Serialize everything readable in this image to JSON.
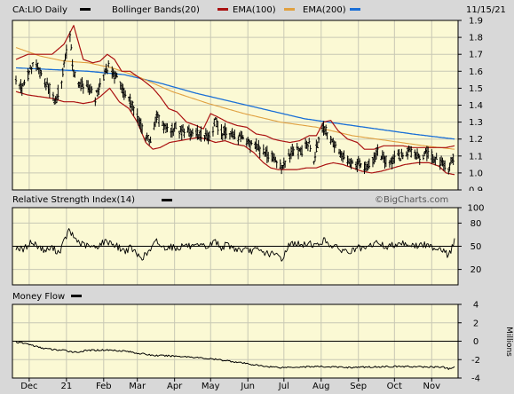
{
  "header": {
    "ticker_label": "CA:LIO Daily",
    "bollinger_label": "Bollinger Bands(20)",
    "ema100_label": "EMA(100)",
    "ema200_label": "EMA(200)",
    "date": "11/15/21"
  },
  "colors": {
    "price": "#000000",
    "bollinger": "#aa1111",
    "ema100": "#e0a040",
    "ema200": "#1a6fd6",
    "panel_bg": "#fbf9d4",
    "outer_bg": "#d8d8d8"
  },
  "rsi_panel": {
    "title": "Relative Strength Index(14)",
    "watermark": "©BigCharts.com"
  },
  "mf_panel": {
    "title": "Money Flow",
    "unit": "Millions"
  },
  "chart_data": [
    {
      "type": "ohlc",
      "ylim": [
        0.9,
        1.9
      ],
      "yticks": [
        0.9,
        1.0,
        1.1,
        1.2,
        1.3,
        1.4,
        1.5,
        1.6,
        1.7,
        1.8,
        1.9
      ],
      "x_tick_labels": [
        "Dec",
        "21",
        "Feb",
        "Mar",
        "Apr",
        "May",
        "Jun",
        "Jul",
        "Aug",
        "Sep",
        "Oct",
        "Nov"
      ],
      "x_ticks": [
        {
          "label": "Dec",
          "day": 11
        },
        {
          "label": "21",
          "day": 42
        },
        {
          "label": "Feb",
          "day": 73
        },
        {
          "label": "Mar",
          "day": 101
        },
        {
          "label": "Apr",
          "day": 132
        },
        {
          "label": "May",
          "day": 162
        },
        {
          "label": "Jun",
          "day": 193
        },
        {
          "label": "Jul",
          "day": 223
        },
        {
          "label": "Aug",
          "day": 254
        },
        {
          "label": "Sep",
          "day": 285
        },
        {
          "label": "Oct",
          "day": 315
        },
        {
          "label": "Nov",
          "day": 346
        }
      ],
      "x_domain": [
        0,
        365
      ],
      "price_anchors": [
        [
          0,
          1.56
        ],
        [
          5,
          1.5
        ],
        [
          10,
          1.58
        ],
        [
          16,
          1.66
        ],
        [
          22,
          1.55
        ],
        [
          28,
          1.5
        ],
        [
          33,
          1.42
        ],
        [
          38,
          1.55
        ],
        [
          42,
          1.72
        ],
        [
          45,
          1.8
        ],
        [
          48,
          1.58
        ],
        [
          54,
          1.52
        ],
        [
          60,
          1.5
        ],
        [
          66,
          1.44
        ],
        [
          72,
          1.56
        ],
        [
          77,
          1.63
        ],
        [
          82,
          1.58
        ],
        [
          88,
          1.5
        ],
        [
          94,
          1.44
        ],
        [
          100,
          1.36
        ],
        [
          104,
          1.27
        ],
        [
          108,
          1.22
        ],
        [
          112,
          1.18
        ],
        [
          117,
          1.34
        ],
        [
          122,
          1.28
        ],
        [
          127,
          1.25
        ],
        [
          132,
          1.27
        ],
        [
          138,
          1.25
        ],
        [
          144,
          1.24
        ],
        [
          150,
          1.23
        ],
        [
          156,
          1.22
        ],
        [
          162,
          1.22
        ],
        [
          166,
          1.3
        ],
        [
          170,
          1.24
        ],
        [
          176,
          1.25
        ],
        [
          182,
          1.22
        ],
        [
          188,
          1.2
        ],
        [
          194,
          1.17
        ],
        [
          200,
          1.15
        ],
        [
          206,
          1.12
        ],
        [
          212,
          1.1
        ],
        [
          218,
          1.06
        ],
        [
          222,
          1.02
        ],
        [
          227,
          1.1
        ],
        [
          232,
          1.14
        ],
        [
          238,
          1.12
        ],
        [
          243,
          1.18
        ],
        [
          248,
          1.08
        ],
        [
          252,
          1.2
        ],
        [
          256,
          1.27
        ],
        [
          260,
          1.22
        ],
        [
          265,
          1.17
        ],
        [
          270,
          1.12
        ],
        [
          276,
          1.08
        ],
        [
          281,
          1.05
        ],
        [
          286,
          1.05
        ],
        [
          291,
          1.04
        ],
        [
          296,
          1.06
        ],
        [
          301,
          1.12
        ],
        [
          306,
          1.08
        ],
        [
          311,
          1.07
        ],
        [
          316,
          1.08
        ],
        [
          321,
          1.1
        ],
        [
          326,
          1.12
        ],
        [
          331,
          1.11
        ],
        [
          336,
          1.1
        ],
        [
          341,
          1.11
        ],
        [
          346,
          1.1
        ],
        [
          351,
          1.07
        ],
        [
          356,
          1.05
        ],
        [
          360,
          1.02
        ],
        [
          365,
          1.11
        ]
      ],
      "bollinger_upper": [
        [
          0,
          1.67
        ],
        [
          10,
          1.7
        ],
        [
          20,
          1.7
        ],
        [
          30,
          1.7
        ],
        [
          40,
          1.76
        ],
        [
          48,
          1.87
        ],
        [
          56,
          1.67
        ],
        [
          64,
          1.65
        ],
        [
          70,
          1.66
        ],
        [
          76,
          1.7
        ],
        [
          82,
          1.67
        ],
        [
          88,
          1.6
        ],
        [
          95,
          1.6
        ],
        [
          101,
          1.57
        ],
        [
          107,
          1.54
        ],
        [
          114,
          1.5
        ],
        [
          120,
          1.45
        ],
        [
          127,
          1.38
        ],
        [
          134,
          1.36
        ],
        [
          142,
          1.3
        ],
        [
          150,
          1.28
        ],
        [
          156,
          1.26
        ],
        [
          162,
          1.35
        ],
        [
          168,
          1.33
        ],
        [
          176,
          1.3
        ],
        [
          184,
          1.28
        ],
        [
          192,
          1.27
        ],
        [
          200,
          1.23
        ],
        [
          208,
          1.22
        ],
        [
          214,
          1.2
        ],
        [
          220,
          1.19
        ],
        [
          228,
          1.18
        ],
        [
          236,
          1.19
        ],
        [
          244,
          1.22
        ],
        [
          250,
          1.22
        ],
        [
          256,
          1.3
        ],
        [
          262,
          1.31
        ],
        [
          268,
          1.25
        ],
        [
          276,
          1.2
        ],
        [
          284,
          1.18
        ],
        [
          290,
          1.14
        ],
        [
          298,
          1.14
        ],
        [
          306,
          1.16
        ],
        [
          314,
          1.16
        ],
        [
          322,
          1.16
        ],
        [
          330,
          1.15
        ],
        [
          340,
          1.15
        ],
        [
          350,
          1.15
        ],
        [
          358,
          1.15
        ],
        [
          365,
          1.16
        ]
      ],
      "bollinger_lower": [
        [
          0,
          1.48
        ],
        [
          10,
          1.46
        ],
        [
          20,
          1.45
        ],
        [
          30,
          1.44
        ],
        [
          40,
          1.42
        ],
        [
          48,
          1.42
        ],
        [
          56,
          1.41
        ],
        [
          64,
          1.42
        ],
        [
          70,
          1.45
        ],
        [
          78,
          1.5
        ],
        [
          86,
          1.42
        ],
        [
          94,
          1.38
        ],
        [
          101,
          1.3
        ],
        [
          108,
          1.18
        ],
        [
          114,
          1.14
        ],
        [
          120,
          1.15
        ],
        [
          128,
          1.18
        ],
        [
          136,
          1.19
        ],
        [
          144,
          1.2
        ],
        [
          152,
          1.21
        ],
        [
          158,
          1.2
        ],
        [
          166,
          1.18
        ],
        [
          174,
          1.19
        ],
        [
          182,
          1.17
        ],
        [
          190,
          1.16
        ],
        [
          198,
          1.12
        ],
        [
          206,
          1.06
        ],
        [
          212,
          1.03
        ],
        [
          218,
          1.02
        ],
        [
          226,
          1.02
        ],
        [
          234,
          1.02
        ],
        [
          242,
          1.03
        ],
        [
          250,
          1.03
        ],
        [
          258,
          1.05
        ],
        [
          264,
          1.06
        ],
        [
          272,
          1.05
        ],
        [
          280,
          1.03
        ],
        [
          288,
          1.01
        ],
        [
          296,
          1.0
        ],
        [
          304,
          1.01
        ],
        [
          314,
          1.03
        ],
        [
          324,
          1.05
        ],
        [
          334,
          1.06
        ],
        [
          344,
          1.06
        ],
        [
          352,
          1.04
        ],
        [
          358,
          1.0
        ],
        [
          365,
          0.99
        ]
      ],
      "ema100": [
        [
          0,
          1.74
        ],
        [
          20,
          1.69
        ],
        [
          40,
          1.66
        ],
        [
          60,
          1.65
        ],
        [
          80,
          1.62
        ],
        [
          101,
          1.57
        ],
        [
          130,
          1.48
        ],
        [
          160,
          1.41
        ],
        [
          190,
          1.35
        ],
        [
          220,
          1.3
        ],
        [
          250,
          1.27
        ],
        [
          280,
          1.22
        ],
        [
          310,
          1.19
        ],
        [
          340,
          1.16
        ],
        [
          365,
          1.14
        ]
      ],
      "ema200": [
        [
          0,
          1.62
        ],
        [
          30,
          1.61
        ],
        [
          60,
          1.6
        ],
        [
          90,
          1.58
        ],
        [
          120,
          1.53
        ],
        [
          150,
          1.47
        ],
        [
          180,
          1.42
        ],
        [
          210,
          1.37
        ],
        [
          240,
          1.32
        ],
        [
          270,
          1.29
        ],
        [
          300,
          1.26
        ],
        [
          330,
          1.23
        ],
        [
          365,
          1.2
        ]
      ]
    },
    {
      "type": "line",
      "name": "",
      "ylim": [
        0,
        100
      ],
      "yticks": [
        20,
        50,
        80,
        100
      ],
      "reference_line": 50,
      "anchors": [
        [
          0,
          49
        ],
        [
          6,
          45
        ],
        [
          12,
          55
        ],
        [
          18,
          51
        ],
        [
          24,
          44
        ],
        [
          30,
          48
        ],
        [
          36,
          42
        ],
        [
          40,
          56
        ],
        [
          44,
          70
        ],
        [
          48,
          62
        ],
        [
          54,
          53
        ],
        [
          60,
          50
        ],
        [
          66,
          48
        ],
        [
          72,
          55
        ],
        [
          78,
          56
        ],
        [
          84,
          50
        ],
        [
          90,
          44
        ],
        [
          96,
          48
        ],
        [
          101,
          38
        ],
        [
          106,
          36
        ],
        [
          112,
          45
        ],
        [
          117,
          57
        ],
        [
          122,
          48
        ],
        [
          128,
          50
        ],
        [
          134,
          47
        ],
        [
          140,
          52
        ],
        [
          148,
          48
        ],
        [
          154,
          50
        ],
        [
          160,
          49
        ],
        [
          166,
          58
        ],
        [
          170,
          48
        ],
        [
          176,
          52
        ],
        [
          182,
          47
        ],
        [
          188,
          45
        ],
        [
          194,
          44
        ],
        [
          200,
          45
        ],
        [
          206,
          42
        ],
        [
          212,
          40
        ],
        [
          218,
          38
        ],
        [
          222,
          33
        ],
        [
          226,
          50
        ],
        [
          232,
          55
        ],
        [
          238,
          50
        ],
        [
          244,
          55
        ],
        [
          250,
          50
        ],
        [
          256,
          58
        ],
        [
          260,
          54
        ],
        [
          266,
          48
        ],
        [
          272,
          45
        ],
        [
          278,
          42
        ],
        [
          284,
          48
        ],
        [
          290,
          45
        ],
        [
          296,
          52
        ],
        [
          302,
          55
        ],
        [
          308,
          48
        ],
        [
          314,
          52
        ],
        [
          320,
          55
        ],
        [
          326,
          53
        ],
        [
          332,
          50
        ],
        [
          338,
          52
        ],
        [
          344,
          50
        ],
        [
          350,
          48
        ],
        [
          356,
          46
        ],
        [
          360,
          36
        ],
        [
          365,
          58
        ]
      ]
    },
    {
      "type": "line",
      "name": "",
      "ylim": [
        -4,
        4
      ],
      "yticks": [
        -4,
        -2,
        0,
        2,
        4
      ],
      "reference_line": 0,
      "anchors": [
        [
          0,
          -0.1
        ],
        [
          10,
          -0.3
        ],
        [
          20,
          -0.7
        ],
        [
          30,
          -0.9
        ],
        [
          40,
          -1.0
        ],
        [
          50,
          -1.2
        ],
        [
          60,
          -1.0
        ],
        [
          75,
          -0.95
        ],
        [
          90,
          -1.05
        ],
        [
          101,
          -1.3
        ],
        [
          115,
          -1.55
        ],
        [
          130,
          -1.6
        ],
        [
          145,
          -1.7
        ],
        [
          160,
          -1.9
        ],
        [
          175,
          -2.1
        ],
        [
          190,
          -2.4
        ],
        [
          205,
          -2.7
        ],
        [
          220,
          -2.85
        ],
        [
          235,
          -2.8
        ],
        [
          250,
          -2.75
        ],
        [
          265,
          -2.8
        ],
        [
          280,
          -2.85
        ],
        [
          295,
          -2.8
        ],
        [
          310,
          -2.75
        ],
        [
          325,
          -2.75
        ],
        [
          340,
          -2.8
        ],
        [
          355,
          -2.8
        ],
        [
          360,
          -3.0
        ],
        [
          365,
          -2.8
        ]
      ]
    }
  ]
}
